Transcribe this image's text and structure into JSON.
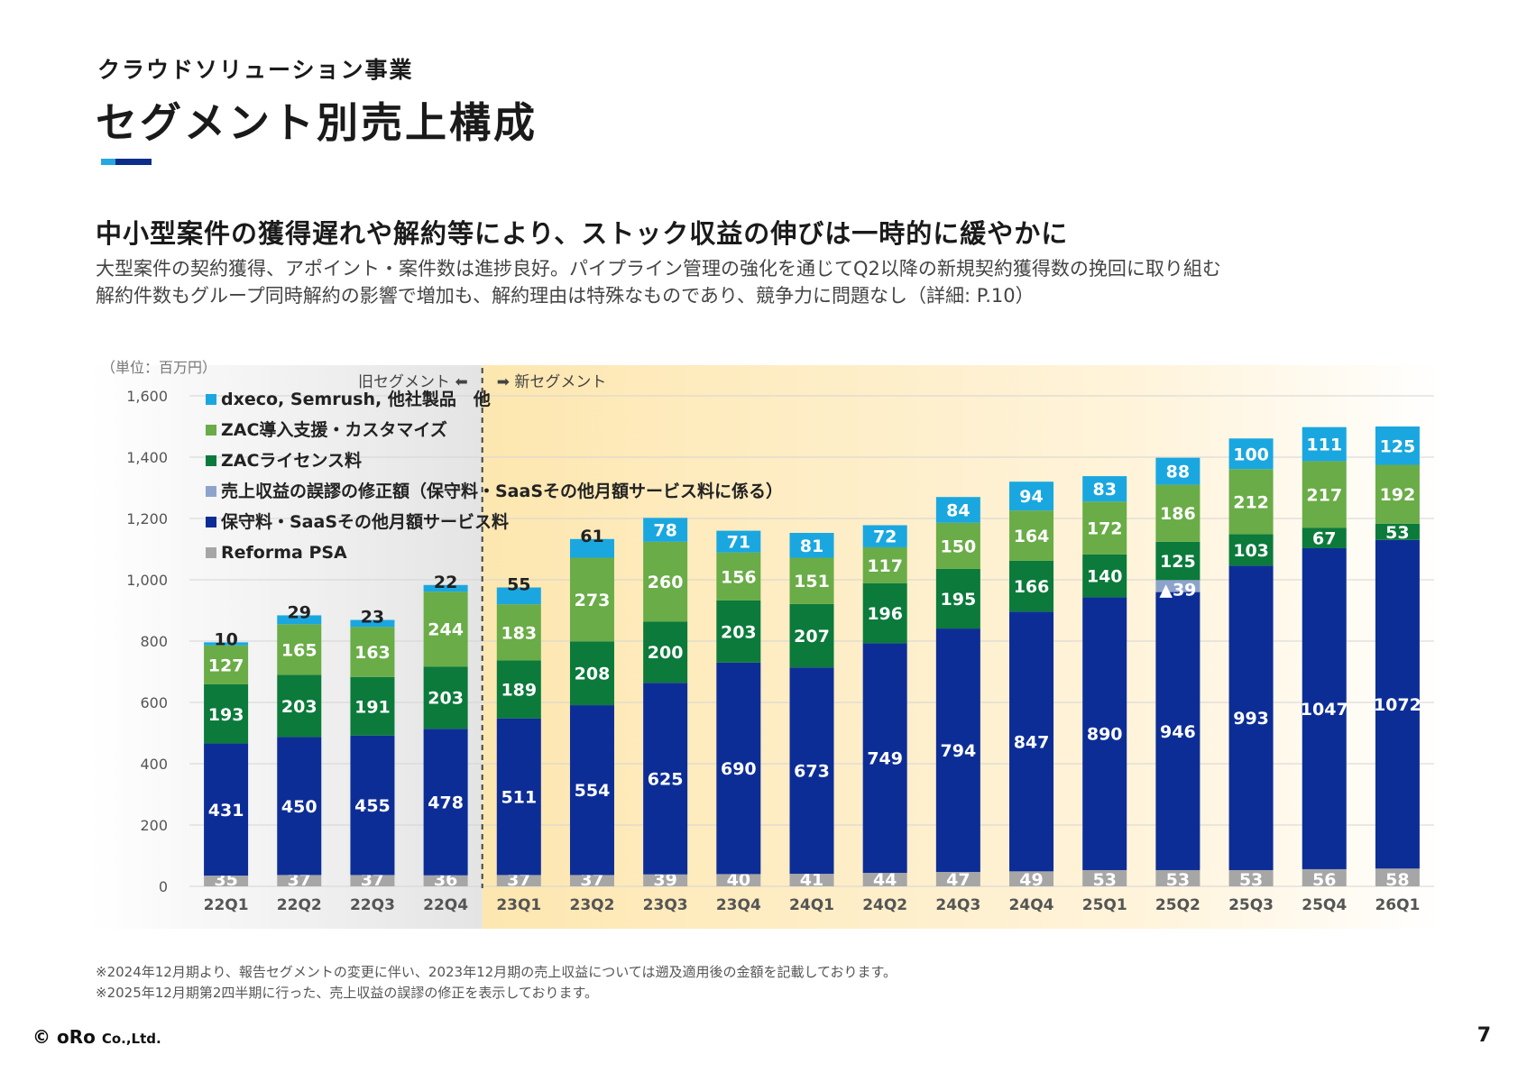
{
  "header": {
    "section": "クラウドソリューション事業",
    "title": "セグメント別売上構成"
  },
  "headline": "中小型案件の獲得遅れや解約等により、ストック収益の伸びは一時的に緩やかに",
  "description": [
    "大型案件の契約獲得、アポイント・案件数は進捗良好。パイプライン管理の強化を通じてQ2以降の新規契約獲得数の挽回に取り組む",
    "解約件数もグループ同時解約の影響で増加も、解約理由は特殊なものであり、競争力に問題なし（詳細: P.10）"
  ],
  "footnotes": [
    "※2024年12月期より、報告セグメントの変更に伴い、2023年12月期の売上収益については遡及適用後の金額を記載しております。",
    "※2025年12月期第2四半期に行った、売上収益の誤謬の修正を表示しております。"
  ],
  "footer": {
    "logo_main": "© oRo",
    "logo_sub": "Co.,Ltd.",
    "page": "7"
  },
  "chart_data": {
    "type": "bar",
    "stacked": true,
    "unit_label": "（単位：百万円）",
    "old_segment_label": "旧セグメント ⬅",
    "new_segment_label": "➡ 新セグメント",
    "categories": [
      "22Q1",
      "22Q2",
      "22Q3",
      "22Q4",
      "23Q1",
      "23Q2",
      "23Q3",
      "23Q4",
      "24Q1",
      "24Q2",
      "24Q3",
      "24Q4",
      "25Q1",
      "25Q2",
      "25Q3",
      "25Q4",
      "26Q1"
    ],
    "ylim": [
      0,
      1600
    ],
    "yticks": [
      0,
      200,
      400,
      600,
      800,
      1000,
      1200,
      1400,
      1600
    ],
    "ytick_labels": [
      "0",
      "200",
      "400",
      "600",
      "800",
      "1,000",
      "1,200",
      "1,400",
      "1,600"
    ],
    "grid": true,
    "legend_position": "top-left",
    "series": [
      {
        "name": "Reforma PSA",
        "color": "#a6a6a6",
        "values": [
          35,
          37,
          37,
          36,
          37,
          37,
          39,
          40,
          41,
          44,
          47,
          49,
          53,
          53,
          53,
          56,
          58
        ]
      },
      {
        "name": "保守料・SaaSその他月額サービス料",
        "color": "#0d2d96",
        "values": [
          431,
          450,
          455,
          478,
          511,
          554,
          625,
          690,
          673,
          749,
          794,
          847,
          890,
          946,
          993,
          1047,
          1072
        ]
      },
      {
        "name": "売上収益の誤謬の修正額（保守料・SaaSその他月額サービス料に係る）",
        "color": "#8ea3cc",
        "values": [
          0,
          0,
          0,
          0,
          0,
          0,
          0,
          0,
          0,
          0,
          0,
          0,
          0,
          -39,
          0,
          0,
          0
        ],
        "labels": [
          "",
          "",
          "",
          "",
          "",
          "",
          "",
          "",
          "",
          "",
          "",
          "",
          "",
          "▲39",
          "",
          "",
          ""
        ]
      },
      {
        "name": "ZACライセンス料",
        "color": "#0b7a3b",
        "values": [
          193,
          203,
          191,
          203,
          189,
          208,
          200,
          203,
          207,
          196,
          195,
          166,
          140,
          125,
          103,
          67,
          53
        ]
      },
      {
        "name": "ZAC導入支援・カスタマイズ",
        "color": "#6aac47",
        "values": [
          127,
          165,
          163,
          244,
          183,
          273,
          260,
          156,
          151,
          117,
          150,
          164,
          172,
          186,
          212,
          217,
          192
        ]
      },
      {
        "name": "dxeco, Semrush, 他社製品　他",
        "color": "#1aa7e0",
        "values": [
          10,
          29,
          23,
          22,
          55,
          61,
          78,
          71,
          81,
          72,
          84,
          94,
          83,
          88,
          100,
          111,
          125
        ]
      }
    ]
  }
}
